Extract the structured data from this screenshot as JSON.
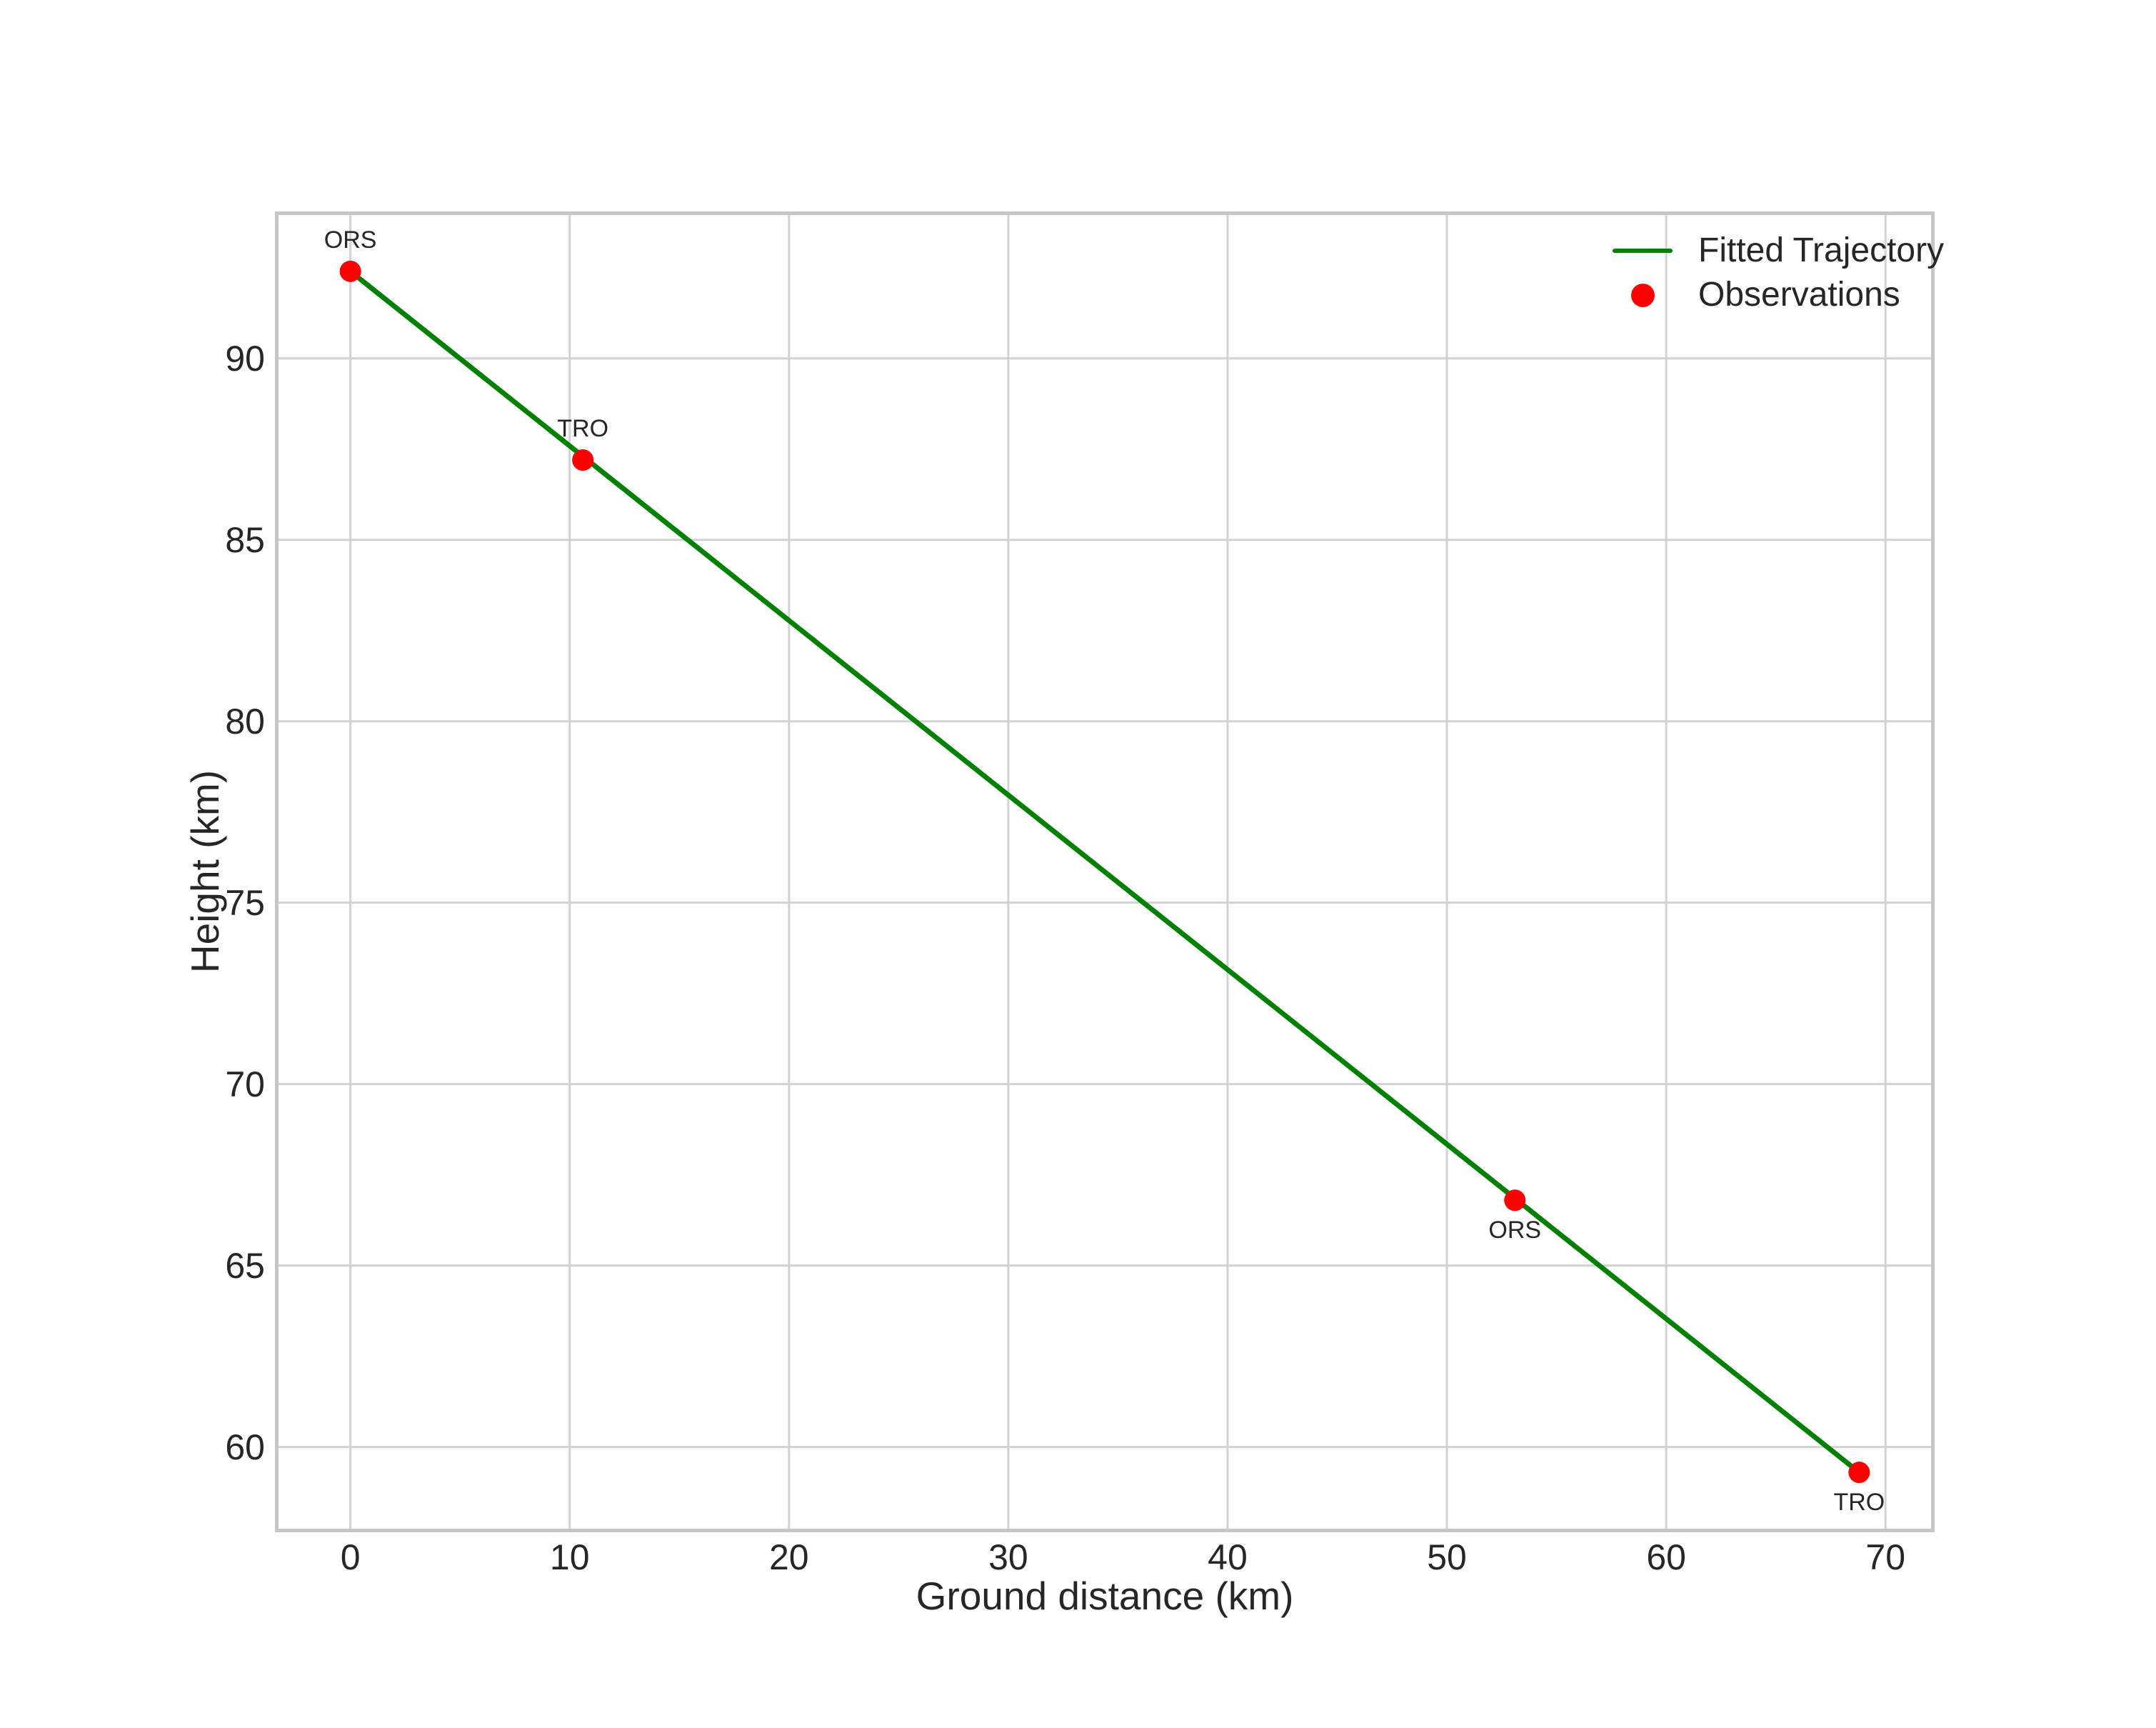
{
  "figure": {
    "background": "#ffffff",
    "title": ""
  },
  "axes": {
    "xlabel": "Ground distance (km)",
    "ylabel": "Height (km)"
  },
  "legend": {
    "position": "upper right",
    "frame": false,
    "items": [
      {
        "label": "Fitted Trajectory",
        "type": "line",
        "color": "#008000"
      },
      {
        "label": "Observations",
        "type": "marker",
        "color": "#ff0000"
      }
    ]
  },
  "chart_data": {
    "type": "line",
    "title": "",
    "xlabel": "Ground distance (km)",
    "ylabel": "Height (km)",
    "xlim": [
      -3.44,
      72.24
    ],
    "ylim": [
      57.65,
      94.05
    ],
    "xticks": [
      0,
      10,
      20,
      30,
      40,
      50,
      60,
      70
    ],
    "yticks": [
      60,
      65,
      70,
      75,
      80,
      85,
      90
    ],
    "grid": true,
    "legend_position": "upper right",
    "series": [
      {
        "name": "Fitted Trajectory",
        "type": "line",
        "color": "#008000",
        "x": [
          0.0,
          68.8
        ],
        "y": [
          92.4,
          59.3
        ]
      },
      {
        "name": "Observations",
        "type": "scatter",
        "color": "#ff0000",
        "points": [
          {
            "label": "ORS",
            "x": 0.0,
            "y": 92.4,
            "label_placement": "above"
          },
          {
            "label": "TRO",
            "x": 10.6,
            "y": 87.2,
            "label_placement": "above"
          },
          {
            "label": "ORS",
            "x": 53.1,
            "y": 66.8,
            "label_placement": "below"
          },
          {
            "label": "TRO",
            "x": 68.8,
            "y": 59.3,
            "label_placement": "below"
          }
        ]
      }
    ]
  },
  "style": {
    "grid_color": "#d2d2d2",
    "spine_color": "#c6c6c6",
    "text_color": "#262626",
    "line_width": 7,
    "marker_radius": 15
  }
}
